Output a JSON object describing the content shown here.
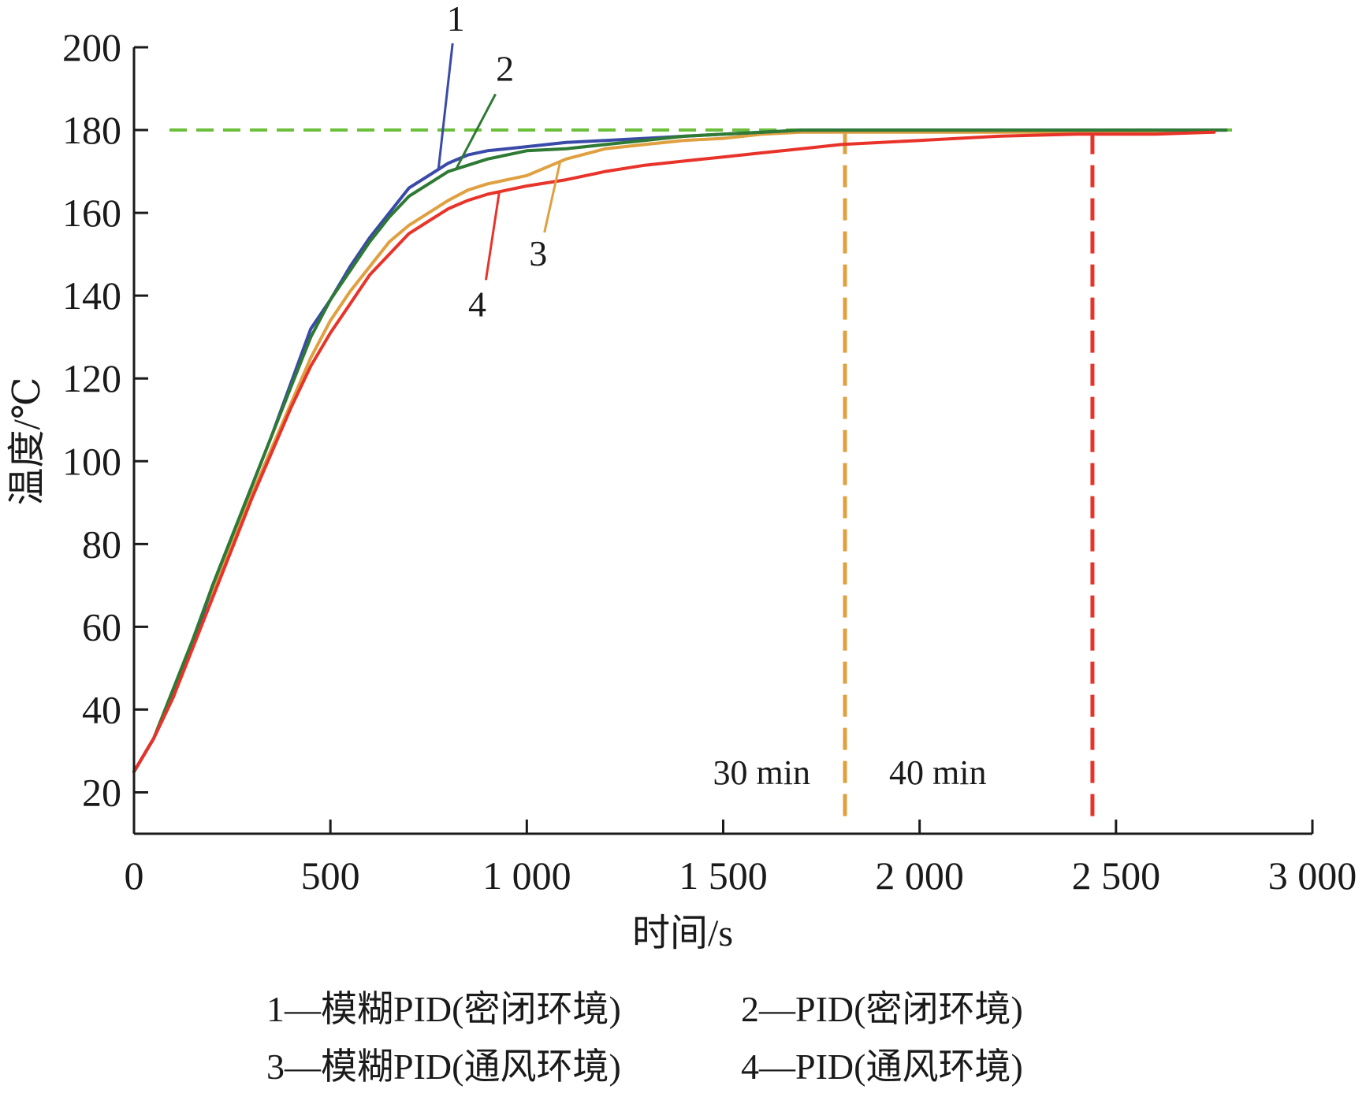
{
  "chart_data": {
    "type": "line",
    "xlabel": "时间/s",
    "ylabel": "温度/℃",
    "xlim": [
      0,
      3000
    ],
    "ylim": [
      10,
      200
    ],
    "x_ticks": [
      0,
      500,
      1000,
      1500,
      2000,
      2500,
      3000
    ],
    "x_tick_labels": [
      "0",
      "500",
      "1 000",
      "1 500",
      "2 000",
      "2 500",
      "3 000"
    ],
    "y_ticks": [
      20,
      40,
      60,
      80,
      100,
      120,
      140,
      160,
      180,
      200
    ],
    "y_tick_labels": [
      "20",
      "40",
      "60",
      "80",
      "100",
      "120",
      "140",
      "160",
      "180",
      "200"
    ],
    "grid": false,
    "setpoint": {
      "y": 180,
      "color": "#6cbf3a"
    },
    "reference_lines": [
      {
        "x": 1810,
        "label": "30 min",
        "color": "#e0a040"
      },
      {
        "x": 2440,
        "label": "40 min",
        "color": "#e8332a"
      }
    ],
    "series": [
      {
        "name": "1",
        "color": "#3a4aa8",
        "x": [
          0,
          50,
          100,
          150,
          200,
          250,
          300,
          350,
          400,
          450,
          500,
          550,
          600,
          650,
          700,
          750,
          800,
          850,
          900,
          950,
          1000,
          1100,
          1200,
          1300,
          1400,
          1500,
          1600,
          1700,
          1800,
          2000,
          2200,
          2400,
          2600,
          2780
        ],
        "y": [
          25,
          33,
          43,
          56,
          70,
          82,
          94,
          106,
          119,
          132,
          139,
          147,
          154,
          160,
          166,
          169,
          172,
          174,
          175,
          175.5,
          176,
          177,
          177.5,
          178,
          178.5,
          179,
          179.5,
          180,
          180,
          180,
          180,
          180,
          180,
          180
        ]
      },
      {
        "name": "2",
        "color": "#2e7a34",
        "x": [
          0,
          50,
          100,
          150,
          200,
          250,
          300,
          350,
          400,
          450,
          500,
          550,
          600,
          650,
          700,
          750,
          800,
          850,
          900,
          950,
          1000,
          1100,
          1200,
          1300,
          1400,
          1500,
          1600,
          1700,
          1800,
          2000,
          2200,
          2400,
          2600,
          2780
        ],
        "y": [
          25,
          33,
          45,
          57,
          70,
          82,
          94,
          106,
          118,
          130,
          139,
          146,
          153,
          159,
          164,
          167,
          170,
          171.5,
          173,
          174,
          175,
          175.5,
          176.5,
          177.5,
          178.5,
          179,
          179.5,
          180,
          180,
          180,
          180,
          180,
          180,
          180
        ]
      },
      {
        "name": "3",
        "color": "#e0a040",
        "x": [
          0,
          50,
          100,
          150,
          200,
          250,
          300,
          350,
          400,
          450,
          500,
          550,
          600,
          650,
          700,
          750,
          800,
          850,
          900,
          950,
          1000,
          1050,
          1100,
          1200,
          1300,
          1400,
          1500,
          1600,
          1700,
          1800,
          2000,
          2200,
          2400,
          2600,
          2750
        ],
        "y": [
          25,
          33,
          43,
          56,
          68,
          80,
          92,
          103,
          114,
          125,
          134,
          141,
          147,
          153,
          157,
          160,
          163,
          165.5,
          167,
          168,
          169,
          171,
          173,
          175.5,
          176.5,
          177.5,
          178,
          179,
          179.5,
          179.5,
          179.5,
          179.5,
          179.5,
          179.5,
          179.5
        ]
      },
      {
        "name": "4",
        "color": "#e8332a",
        "x": [
          0,
          50,
          100,
          150,
          200,
          250,
          300,
          350,
          400,
          450,
          500,
          550,
          600,
          650,
          700,
          750,
          800,
          850,
          900,
          950,
          1000,
          1100,
          1200,
          1300,
          1400,
          1500,
          1600,
          1700,
          1800,
          2000,
          2200,
          2400,
          2600,
          2750
        ],
        "y": [
          25,
          33,
          43,
          55,
          67,
          79,
          91,
          102,
          113,
          123,
          131,
          138,
          145,
          150,
          155,
          158,
          161,
          163,
          164.5,
          165.5,
          166.5,
          168,
          170,
          171.5,
          172.5,
          173.5,
          174.5,
          175.5,
          176.5,
          177.5,
          178.5,
          179,
          179,
          179.5
        ]
      }
    ],
    "callouts": [
      {
        "label": "1",
        "series": "1",
        "at_x": 775
      },
      {
        "label": "2",
        "series": "2",
        "at_x": 820
      },
      {
        "label": "3",
        "series": "3",
        "at_x": 1085
      },
      {
        "label": "4",
        "series": "4",
        "at_x": 930
      }
    ],
    "legend": {
      "placement": "bottom",
      "rows": [
        [
          "1—模糊PID(密闭环境)",
          "2—PID(密闭环境)"
        ],
        [
          "3—模糊PID(通风环境)",
          "4—PID(通风环境)"
        ]
      ]
    }
  }
}
